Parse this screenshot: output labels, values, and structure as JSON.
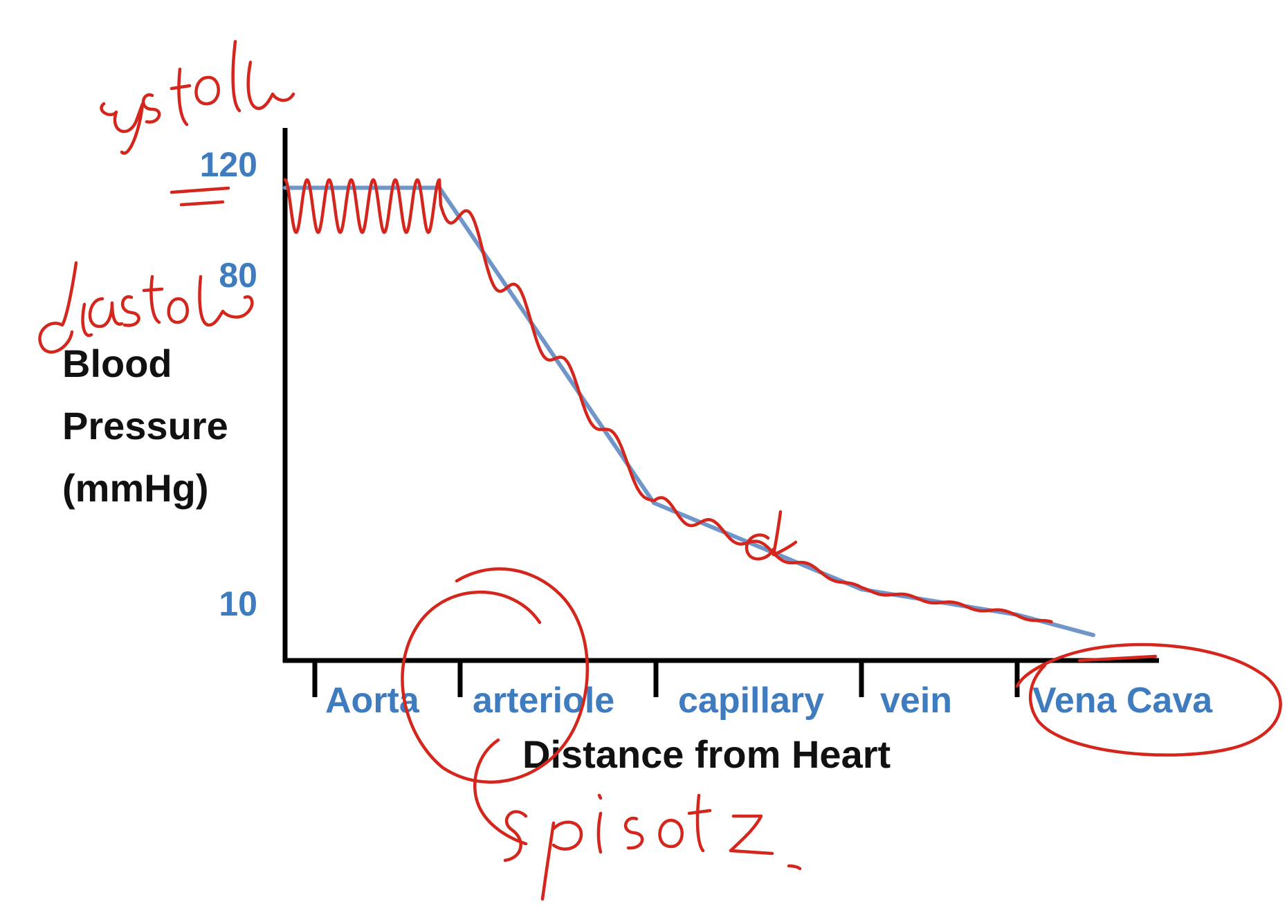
{
  "chart_data": {
    "type": "line",
    "ylabel_lines": [
      "Blood",
      "Pressure",
      "(mmHg)"
    ],
    "xlabel": "Distance from Heart",
    "y_ticks": [
      {
        "value": 120,
        "label": "120"
      },
      {
        "value": 80,
        "label": "80"
      },
      {
        "value": 10,
        "label": "10"
      }
    ],
    "categories": [
      "Aorta",
      "arteriole",
      "capillary",
      "vein",
      "Vena Cava"
    ],
    "series": [
      {
        "x": [
          0,
          1,
          2,
          3,
          4,
          5
        ],
        "y": [
          93,
          93,
          31,
          14,
          9,
          5
        ]
      }
    ],
    "colors": {
      "line": "#6f95c9",
      "axis": "#000000",
      "labels": "#3e7bbf",
      "annotation": "#d4261c"
    }
  },
  "annotations": [
    "systole",
    "diastole",
    "d",
    "sphincters"
  ]
}
